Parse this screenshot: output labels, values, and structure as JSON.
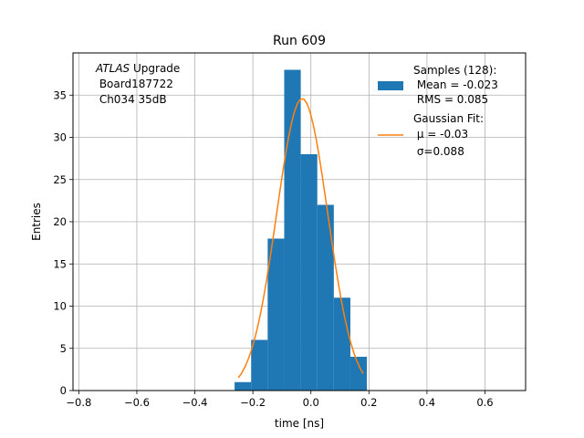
{
  "chart_data": {
    "type": "bar",
    "title": "Run 609",
    "xlabel": "time [ns]",
    "ylabel": "Entries",
    "xlim": [
      -0.82,
      0.74
    ],
    "ylim": [
      0,
      40
    ],
    "grid": true,
    "xticks": [
      -0.8,
      -0.6,
      -0.4,
      -0.2,
      0.0,
      0.2,
      0.4,
      0.6
    ],
    "xtick_labels": [
      "−0.8",
      "−0.6",
      "−0.4",
      "−0.2",
      "0.0",
      "0.2",
      "0.4",
      "0.6"
    ],
    "yticks": [
      0,
      5,
      10,
      15,
      20,
      25,
      30,
      35
    ],
    "ytick_labels": [
      "0",
      "5",
      "10",
      "15",
      "20",
      "25",
      "30",
      "35"
    ],
    "annotation": {
      "italic": "ATLAS",
      "line1_rest": " Upgrade",
      "line2": " Board187722",
      "line3": " Ch034 35dB"
    },
    "legend_placement": "top-right",
    "legend": {
      "hist_lines": [
        "Samples (128):",
        " Mean = -0.023",
        " RMS = 0.085"
      ],
      "fit_lines": [
        "Gaussian Fit:",
        " μ = -0.03",
        " σ=0.088"
      ]
    },
    "histogram": {
      "name": "Samples (128)",
      "color": "#1f77b4",
      "bin_edges": [
        -0.263,
        -0.206,
        -0.149,
        -0.092,
        -0.035,
        0.022,
        0.079,
        0.136,
        0.193
      ],
      "counts": [
        1,
        6,
        18,
        38,
        28,
        22,
        11,
        4
      ]
    },
    "fit": {
      "name": "Gaussian Fit",
      "color": "#ff7f0e",
      "mu": -0.03,
      "sigma": 0.088,
      "amplitude": 34.6,
      "x_range": [
        -0.25,
        0.18
      ]
    }
  }
}
